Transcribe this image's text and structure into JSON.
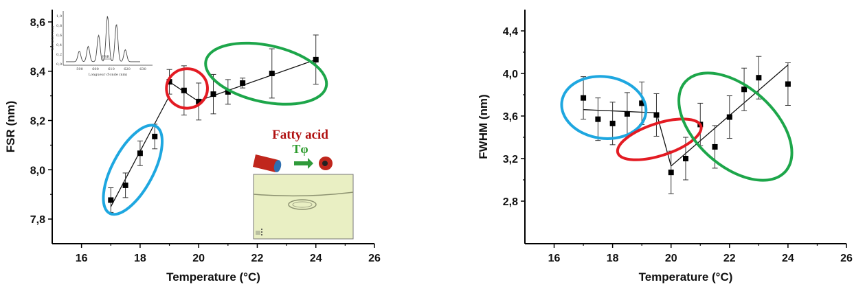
{
  "chart_data": [
    {
      "type": "scatter",
      "xlabel": "Temperature (°C)",
      "ylabel": "FSR (nm)",
      "xlim": [
        15,
        26
      ],
      "ylim": [
        7.7,
        8.65
      ],
      "xticks": [
        "16",
        "18",
        "20",
        "22",
        "24",
        "26"
      ],
      "yticks": [
        "7,8",
        "8,0",
        "8,2",
        "8,4",
        "8,6"
      ],
      "series": [
        {
          "x": [
            17,
            17.5,
            18,
            18.5,
            19,
            19.5,
            20,
            20.5,
            21,
            21.5,
            22.5,
            24
          ],
          "y": [
            7.877,
            7.937,
            8.067,
            8.135,
            8.357,
            8.322,
            8.277,
            8.307,
            8.316,
            8.352,
            8.391,
            8.447
          ],
          "err": [
            0.05,
            0.05,
            0.05,
            0.05,
            0.05,
            0.1,
            0.075,
            0.08,
            0.05,
            0.02,
            0.1,
            0.1
          ]
        }
      ],
      "fit_lines": [
        {
          "x": [
            17,
            19
          ],
          "y": [
            7.85,
            8.3
          ]
        },
        {
          "x": [
            19,
            20
          ],
          "y": [
            8.357,
            8.277
          ]
        },
        {
          "x": [
            20,
            24
          ],
          "y": [
            8.28,
            8.447
          ]
        }
      ],
      "regions": [
        {
          "color": "#1ea7e0",
          "cx": 17.75,
          "cy": 8.0,
          "rx": 0.7,
          "ry": 0.2,
          "rot": 62
        },
        {
          "color": "#e31b23",
          "cx": 19.6,
          "cy": 8.33,
          "rx": 0.7,
          "ry": 0.08,
          "rot": 5
        },
        {
          "color": "#1da64a",
          "cx": 22.3,
          "cy": 8.39,
          "rx": 2.1,
          "ry": 0.115,
          "rot": -12
        }
      ],
      "inset_spectrum": {
        "xlabel": "Longueur d'onde (nm)",
        "ylabel": "Intensité (u.a)",
        "xticks": [
          "590",
          "600",
          "610",
          "620",
          "630"
        ],
        "yticks": [
          "0,0",
          "0,2",
          "0,4",
          "0,6",
          "0,8",
          "1,0"
        ],
        "marker": "FSR"
      },
      "annotation": {
        "title": "Fatty acid",
        "symbol": "Tφ"
      }
    },
    {
      "type": "scatter",
      "xlabel": "Temperature (°C)",
      "ylabel": "FWHM (nm)",
      "xlim": [
        15,
        26
      ],
      "ylim": [
        2.4,
        4.6
      ],
      "xticks": [
        "16",
        "18",
        "20",
        "22",
        "24",
        "26"
      ],
      "yticks": [
        "2,8",
        "3,2",
        "3,6",
        "4,0",
        "4,4"
      ],
      "series": [
        {
          "x": [
            17,
            17.5,
            18,
            18.5,
            19,
            19.5,
            20,
            20.5,
            21,
            21.5,
            22,
            22.5,
            23,
            24
          ],
          "y": [
            3.77,
            3.57,
            3.53,
            3.62,
            3.72,
            3.61,
            3.07,
            3.2,
            3.52,
            3.31,
            3.59,
            3.85,
            3.96,
            3.9
          ],
          "err": [
            0.2,
            0.2,
            0.2,
            0.2,
            0.2,
            0.2,
            0.2,
            0.2,
            0.2,
            0.2,
            0.2,
            0.2,
            0.2,
            0.2
          ]
        }
      ],
      "fit_lines": [
        {
          "x": [
            17,
            19.5
          ],
          "y": [
            3.66,
            3.63
          ]
        },
        {
          "x": [
            19.5,
            20
          ],
          "y": [
            3.63,
            3.13
          ]
        },
        {
          "x": [
            20,
            24
          ],
          "y": [
            3.13,
            4.08
          ]
        }
      ],
      "regions": [
        {
          "color": "#1ea7e0",
          "cx": 17.7,
          "cy": 3.68,
          "rx": 1.45,
          "ry": 0.29,
          "rot": -8
        },
        {
          "color": "#e31b23",
          "cx": 19.6,
          "cy": 3.38,
          "rx": 0.55,
          "ry": 0.41,
          "rot": 18
        },
        {
          "color": "#1da64a",
          "cx": 22.2,
          "cy": 3.5,
          "rx": 2.3,
          "ry": 0.37,
          "rot": -42
        }
      ]
    }
  ]
}
